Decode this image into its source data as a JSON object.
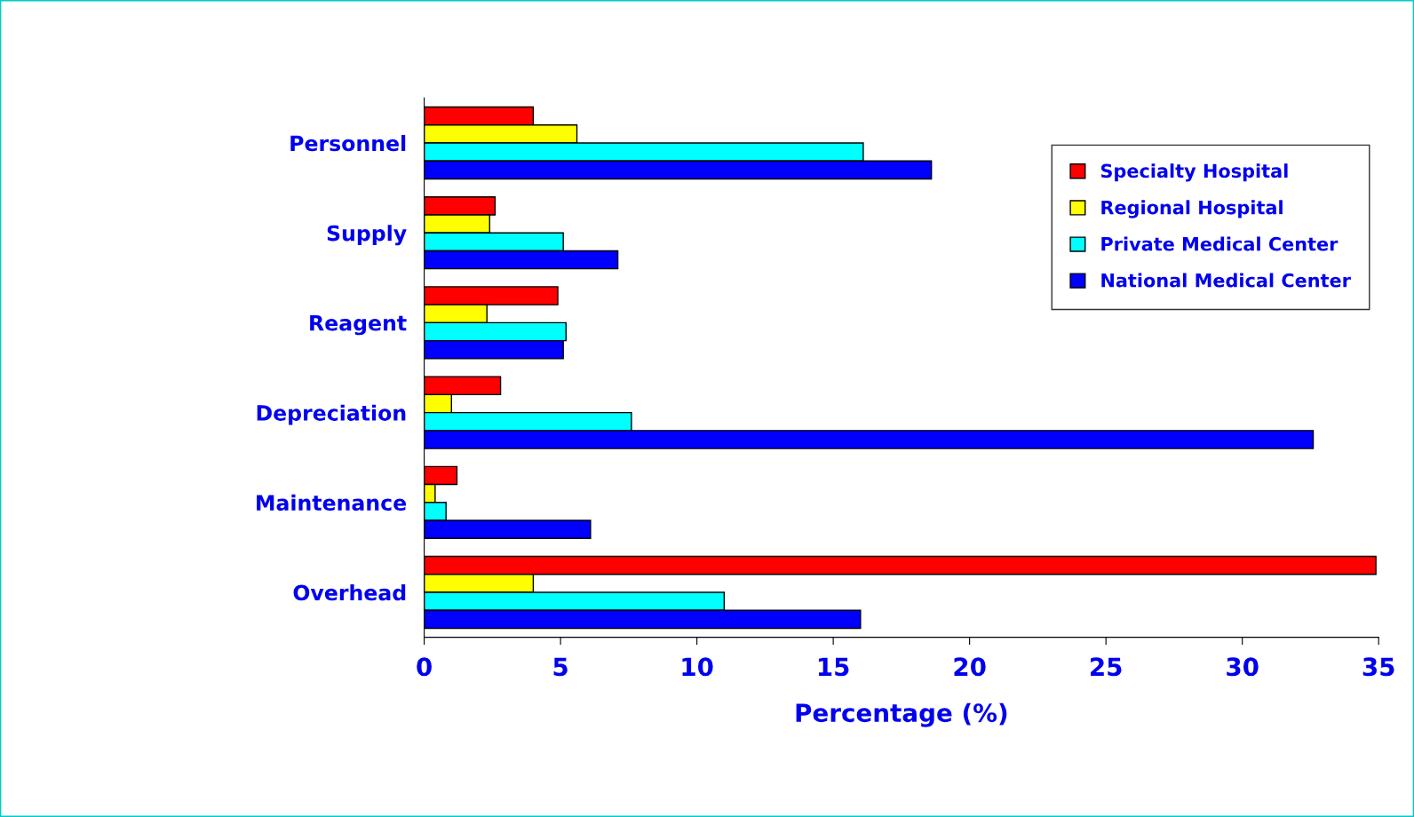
{
  "chart_data": {
    "type": "bar",
    "orientation": "horizontal",
    "xlabel": "Percentage (%)",
    "categories": [
      "Personnel",
      "Supply",
      "Reagent",
      "Depreciation",
      "Maintenance",
      "Overhead"
    ],
    "series": [
      {
        "name": "Specialty Hospital",
        "color": "#ff0000",
        "values": [
          4.0,
          2.6,
          4.9,
          2.8,
          1.2,
          34.9
        ]
      },
      {
        "name": "Regional Hospital",
        "color": "#ffff00",
        "values": [
          5.6,
          2.4,
          2.3,
          1.0,
          0.4,
          4.0
        ]
      },
      {
        "name": "Private Medical Center",
        "color": "#00ffff",
        "values": [
          16.1,
          5.1,
          5.2,
          7.6,
          0.8,
          11.0
        ]
      },
      {
        "name": "National Medical Center",
        "color": "#0000ff",
        "values": [
          18.6,
          7.1,
          5.1,
          32.6,
          6.1,
          16.0
        ]
      }
    ],
    "xlim": [
      0,
      35
    ],
    "xticks": [
      0,
      5,
      10,
      15,
      20,
      25,
      30,
      35
    ],
    "grid": false,
    "legend": "top right"
  }
}
